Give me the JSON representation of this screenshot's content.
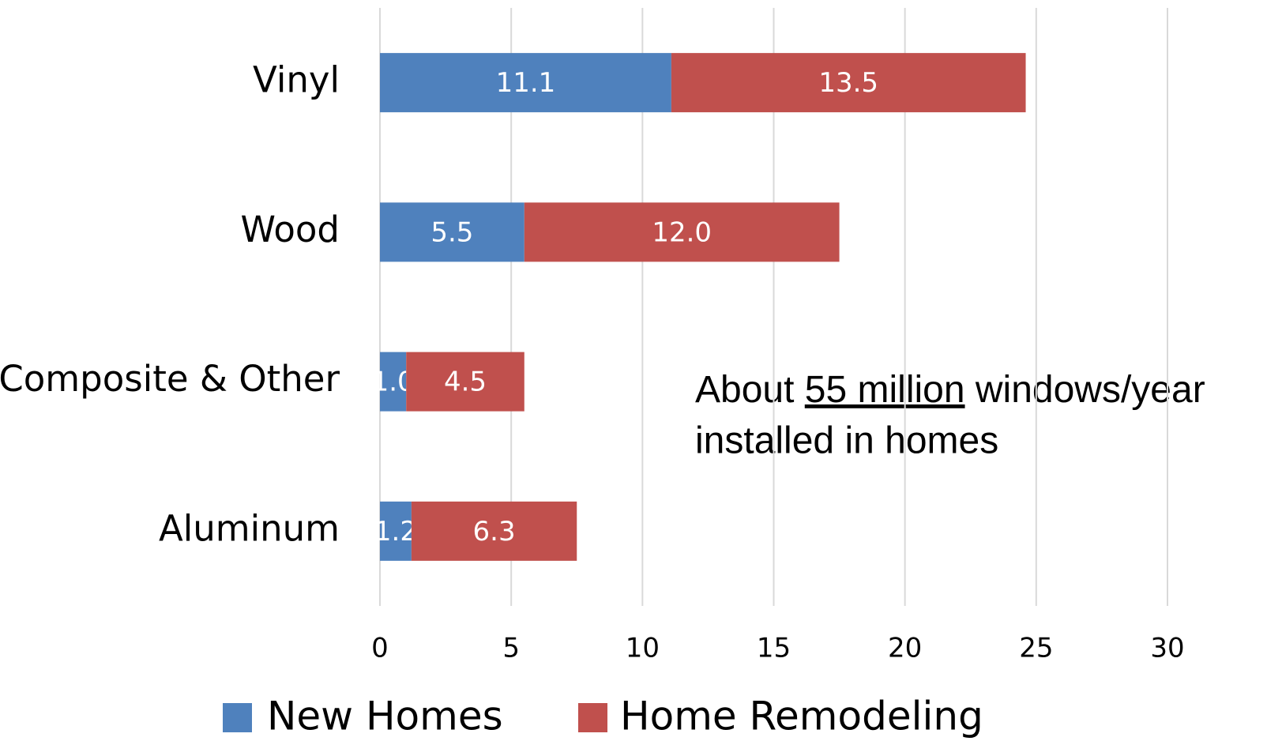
{
  "chart_data": {
    "type": "stacked_barh",
    "categories": [
      "Vinyl",
      "Wood",
      "Composite & Other",
      "Aluminum"
    ],
    "series": [
      {
        "name": "New Homes",
        "color": "#4f81bd",
        "values": [
          11.1,
          5.5,
          1.0,
          1.2
        ],
        "value_labels": [
          "11.1",
          "5.5",
          "1.0",
          "1.2"
        ]
      },
      {
        "name": "Home Remodeling",
        "color": "#c0504d",
        "values": [
          13.5,
          12.0,
          4.5,
          6.3
        ],
        "value_labels": [
          "13.5",
          "12.0",
          "4.5",
          "6.3"
        ]
      }
    ],
    "xlim": [
      0,
      30
    ],
    "xticks": [
      0,
      5,
      10,
      15,
      20,
      25,
      30
    ],
    "grid": true,
    "legend": "bottom",
    "annotation": [
      "About ",
      "55 million",
      " windows/year",
      "installed in homes"
    ]
  }
}
